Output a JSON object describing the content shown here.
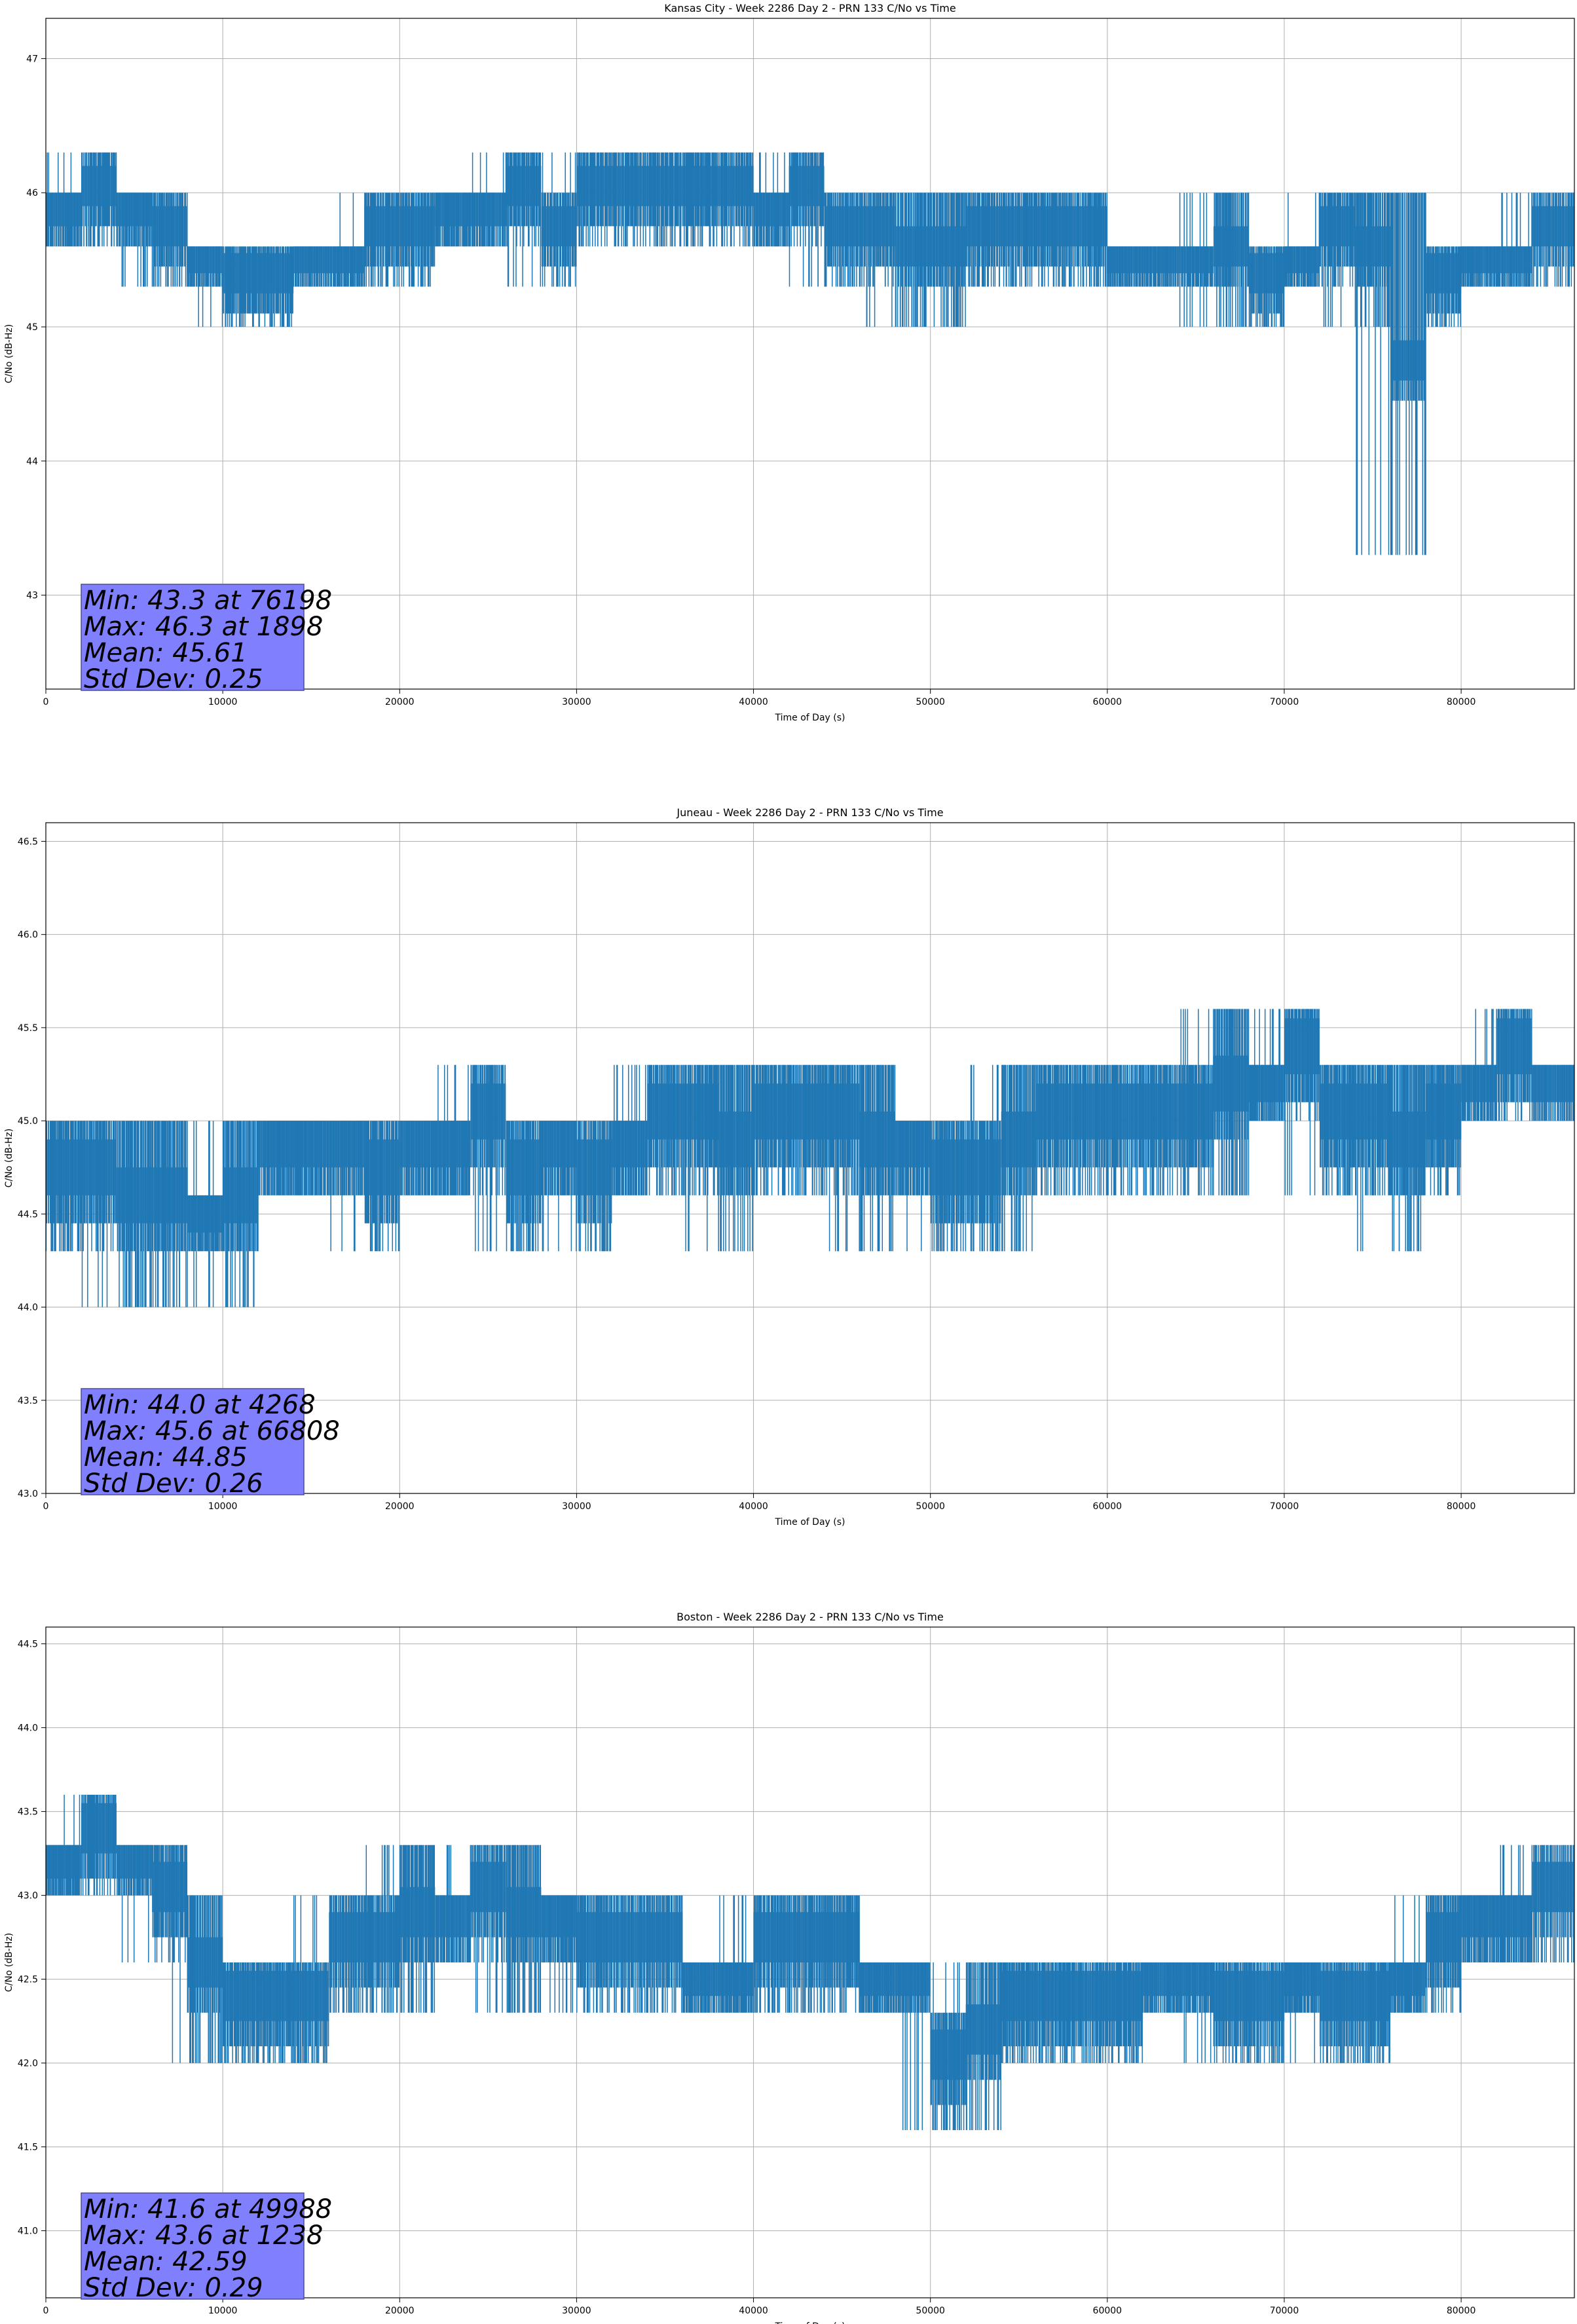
{
  "chart_data": [
    {
      "type": "line",
      "title": "Kansas City - Week 2286 Day 2 - PRN 133 C/No vs Time",
      "xlabel": "Time of Day (s)",
      "ylabel": "C/No (dB-Hz)",
      "xlim": [
        0,
        86400
      ],
      "ylim": [
        42.3,
        47.3
      ],
      "x_ticks": [
        "0",
        "10000",
        "20000",
        "30000",
        "40000",
        "50000",
        "60000",
        "70000",
        "80000"
      ],
      "y_ticks": [
        "43",
        "44",
        "45",
        "46",
        "47"
      ],
      "y_tick_values": [
        43,
        44,
        45,
        46,
        47
      ],
      "grid": true,
      "series_color": "#1f77b4",
      "series": [
        {
          "x": [
            0,
            2000,
            4000,
            6000,
            8000,
            10000,
            12000,
            14000,
            16000,
            18000,
            20000,
            22000,
            24000,
            26000,
            28000,
            30000,
            32000,
            34000,
            36000,
            38000,
            40000,
            42000,
            44000,
            46000,
            48000,
            50000,
            52000,
            54000,
            56000,
            58000,
            60000,
            62000,
            64000,
            66000,
            68000,
            70000,
            72000,
            74000,
            76000,
            78000,
            80000,
            82000,
            84000,
            86400
          ],
          "y_low": [
            45.6,
            45.6,
            45.6,
            45.3,
            45.3,
            45.0,
            45.0,
            45.3,
            45.3,
            45.3,
            45.3,
            45.6,
            45.6,
            45.6,
            45.3,
            45.6,
            45.6,
            45.6,
            45.6,
            45.6,
            45.6,
            45.6,
            45.3,
            45.3,
            45.0,
            45.0,
            45.3,
            45.3,
            45.3,
            45.3,
            45.3,
            45.3,
            45.3,
            45.0,
            45.0,
            45.3,
            45.3,
            45.0,
            43.3,
            45.0,
            45.3,
            45.3,
            45.3,
            45.6
          ],
          "y_high": [
            46.0,
            46.3,
            46.0,
            46.0,
            45.6,
            45.6,
            45.6,
            45.6,
            45.6,
            46.0,
            46.0,
            46.0,
            46.0,
            46.3,
            46.0,
            46.3,
            46.3,
            46.3,
            46.3,
            46.3,
            46.0,
            46.3,
            46.0,
            46.0,
            46.0,
            46.0,
            46.0,
            46.0,
            46.0,
            46.0,
            45.6,
            45.6,
            45.6,
            46.0,
            45.6,
            45.6,
            46.0,
            46.0,
            46.0,
            45.6,
            45.6,
            45.6,
            46.0,
            46.0
          ]
        }
      ],
      "stats": {
        "min": "Min: 43.3 at 76198",
        "max": "Max: 46.3 at 1898",
        "mean": "Mean: 45.61",
        "std": "Std Dev: 0.25"
      }
    },
    {
      "type": "line",
      "title": "Juneau - Week 2286 Day 2 - PRN 133 C/No vs Time",
      "xlabel": "Time of Day (s)",
      "ylabel": "C/No (dB-Hz)",
      "xlim": [
        0,
        86400
      ],
      "ylim": [
        43.0,
        46.6
      ],
      "x_ticks": [
        "0",
        "10000",
        "20000",
        "30000",
        "40000",
        "50000",
        "60000",
        "70000",
        "80000"
      ],
      "y_ticks": [
        "43.0",
        "43.5",
        "44.0",
        "44.5",
        "45.0",
        "45.5",
        "46.0",
        "46.5"
      ],
      "y_tick_values": [
        43.0,
        43.5,
        44.0,
        44.5,
        45.0,
        45.5,
        46.0,
        46.5
      ],
      "grid": true,
      "series_color": "#1f77b4",
      "series": [
        {
          "x": [
            0,
            2000,
            4000,
            6000,
            8000,
            10000,
            12000,
            14000,
            16000,
            18000,
            20000,
            22000,
            24000,
            26000,
            28000,
            30000,
            32000,
            34000,
            36000,
            38000,
            40000,
            42000,
            44000,
            46000,
            48000,
            50000,
            52000,
            54000,
            56000,
            58000,
            60000,
            62000,
            64000,
            66000,
            68000,
            70000,
            72000,
            74000,
            76000,
            78000,
            80000,
            82000,
            84000,
            86400
          ],
          "y_low": [
            44.3,
            44.3,
            44.0,
            44.0,
            44.3,
            44.0,
            44.6,
            44.6,
            44.6,
            44.3,
            44.6,
            44.6,
            44.6,
            44.3,
            44.6,
            44.3,
            44.6,
            44.6,
            44.6,
            44.3,
            44.6,
            44.6,
            44.6,
            44.3,
            44.6,
            44.3,
            44.3,
            44.3,
            44.6,
            44.6,
            44.6,
            44.6,
            44.6,
            44.6,
            45.0,
            45.0,
            44.6,
            44.6,
            44.3,
            44.6,
            45.0,
            45.0,
            45.0,
            45.0
          ],
          "y_high": [
            45.0,
            45.0,
            45.0,
            45.0,
            44.6,
            45.0,
            45.0,
            45.0,
            45.0,
            45.0,
            45.0,
            45.0,
            45.3,
            45.0,
            45.0,
            45.0,
            45.0,
            45.3,
            45.3,
            45.3,
            45.3,
            45.3,
            45.3,
            45.3,
            45.0,
            45.0,
            45.0,
            45.3,
            45.3,
            45.3,
            45.3,
            45.3,
            45.3,
            45.6,
            45.3,
            45.6,
            45.3,
            45.3,
            45.3,
            45.3,
            45.3,
            45.6,
            45.3,
            45.3
          ]
        }
      ],
      "stats": {
        "min": "Min: 44.0 at 4268",
        "max": "Max: 45.6 at 66808",
        "mean": "Mean: 44.85",
        "std": "Std Dev: 0.26"
      }
    },
    {
      "type": "line",
      "title": "Boston - Week 2286 Day 2 - PRN 133 C/No vs Time",
      "xlabel": "Time of Day (s)",
      "ylabel": "C/No (dB-Hz)",
      "xlim": [
        0,
        86400
      ],
      "ylim": [
        40.6,
        44.6
      ],
      "x_ticks": [
        "0",
        "10000",
        "20000",
        "30000",
        "40000",
        "50000",
        "60000",
        "70000",
        "80000"
      ],
      "y_ticks": [
        "41.0",
        "41.5",
        "42.0",
        "42.5",
        "43.0",
        "43.5",
        "44.0",
        "44.5"
      ],
      "y_tick_values": [
        41.0,
        41.5,
        42.0,
        42.5,
        43.0,
        43.5,
        44.0,
        44.5
      ],
      "grid": true,
      "series_color": "#1f77b4",
      "series": [
        {
          "x": [
            0,
            2000,
            4000,
            6000,
            8000,
            10000,
            12000,
            14000,
            16000,
            18000,
            20000,
            22000,
            24000,
            26000,
            28000,
            30000,
            32000,
            34000,
            36000,
            38000,
            40000,
            42000,
            44000,
            46000,
            48000,
            50000,
            52000,
            54000,
            56000,
            58000,
            60000,
            62000,
            64000,
            66000,
            68000,
            70000,
            72000,
            74000,
            76000,
            78000,
            80000,
            82000,
            84000,
            86400
          ],
          "y_low": [
            43.0,
            43.0,
            43.0,
            42.6,
            42.0,
            42.0,
            42.0,
            42.0,
            42.3,
            42.3,
            42.3,
            42.6,
            42.6,
            42.3,
            42.6,
            42.3,
            42.3,
            42.3,
            42.3,
            42.3,
            42.3,
            42.3,
            42.3,
            42.3,
            42.3,
            41.6,
            41.6,
            42.0,
            42.0,
            42.0,
            42.0,
            42.3,
            42.3,
            42.0,
            42.0,
            42.3,
            42.0,
            42.0,
            42.3,
            42.3,
            42.6,
            42.6,
            42.6,
            42.6
          ],
          "y_high": [
            43.3,
            43.6,
            43.3,
            43.3,
            43.0,
            42.6,
            42.6,
            42.6,
            43.0,
            43.0,
            43.3,
            43.0,
            43.3,
            43.3,
            43.0,
            43.0,
            43.0,
            43.0,
            42.6,
            42.6,
            43.0,
            43.0,
            43.0,
            42.6,
            42.6,
            42.3,
            42.6,
            42.6,
            42.6,
            42.6,
            42.6,
            42.6,
            42.6,
            42.6,
            42.6,
            42.6,
            42.6,
            42.6,
            42.6,
            43.0,
            43.0,
            43.0,
            43.3,
            43.3
          ]
        }
      ],
      "stats": {
        "min": "Min: 41.6 at 49988",
        "max": "Max: 43.6 at 1238",
        "mean": "Mean: 42.59",
        "std": "Std Dev: 0.29"
      }
    }
  ]
}
